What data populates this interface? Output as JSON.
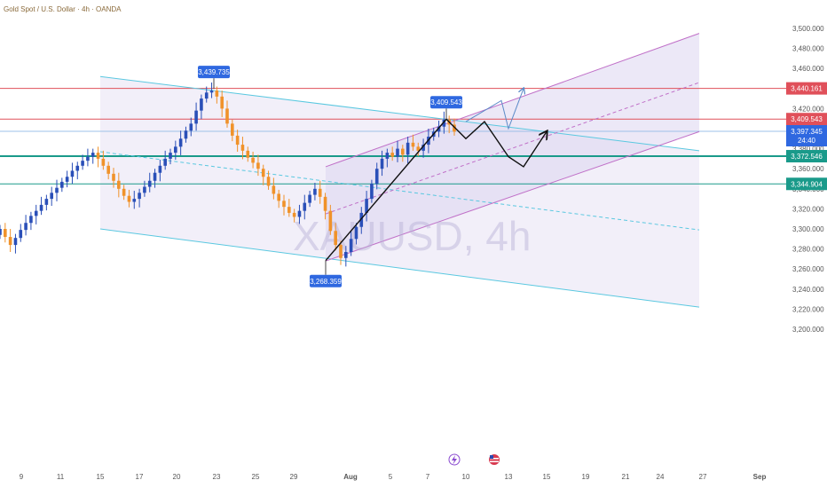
{
  "header": {
    "title": "Gold Spot / U.S. Dollar · 4h · OANDA"
  },
  "watermark": "XAUUSD, 4h",
  "colors": {
    "up": "#2a4fb8",
    "down": "#f0922a",
    "resistance": "#e0505a",
    "support": "#1a9a8a",
    "channel_down": "#5ac8e0",
    "channel_up": "#c070c8",
    "projection": "#111111",
    "alt_projection": "#5b8ac8",
    "price_tag": "#2f68e0"
  },
  "chart_data": {
    "type": "candlestick",
    "symbol": "XAUUSD",
    "timeframe": "4h",
    "y_ticks": [
      "3,500.000",
      "3,480.000",
      "3,460.000",
      "3,440.000",
      "3,420.000",
      "3,400.000",
      "3,380.000",
      "3,360.000",
      "3,340.000",
      "3,320.000",
      "3,300.000",
      "3,280.000",
      "3,260.000",
      "3,240.000",
      "3,220.000",
      "3,200.000"
    ],
    "ylim": [
      3200,
      3500
    ],
    "x_ticks": [
      "9",
      "11",
      "15",
      "17",
      "20",
      "23",
      "25",
      "29",
      "Aug",
      "5",
      "7",
      "10",
      "13",
      "15",
      "19",
      "21",
      "24",
      "27",
      "Sep"
    ],
    "levels": [
      {
        "value": 3440.161,
        "label": "3,440.161",
        "role": "resistance"
      },
      {
        "value": 3409.543,
        "label": "3,409.543",
        "role": "resistance"
      },
      {
        "value": 3397.345,
        "label": "3,397.345",
        "sub": "24:40",
        "role": "current"
      },
      {
        "value": 3372.546,
        "label": "3,372.546",
        "role": "support"
      },
      {
        "value": 3344.904,
        "label": "3,344.904",
        "role": "support"
      }
    ],
    "annotations": [
      {
        "text": "3,439.735",
        "x": "Jul 23",
        "y": 3439.735,
        "kind": "high"
      },
      {
        "text": "3,409.543",
        "x": "Aug 8",
        "y": 3409.543,
        "kind": "high"
      },
      {
        "text": "3,268.359",
        "x": "Jul 30",
        "y": 3268.359,
        "kind": "low"
      }
    ],
    "closes": [
      3300,
      3292,
      3284,
      3291,
      3299,
      3306,
      3313,
      3318,
      3324,
      3330,
      3336,
      3341,
      3347,
      3352,
      3358,
      3363,
      3368,
      3372,
      3376,
      3370,
      3363,
      3355,
      3348,
      3340,
      3333,
      3327,
      3330,
      3336,
      3342,
      3348,
      3356,
      3363,
      3370,
      3376,
      3382,
      3390,
      3398,
      3405,
      3418,
      3430,
      3436,
      3438,
      3432,
      3420,
      3405,
      3393,
      3384,
      3378,
      3371,
      3366,
      3360,
      3352,
      3343,
      3335,
      3328,
      3322,
      3316,
      3312,
      3318,
      3326,
      3334,
      3340,
      3332,
      3318,
      3298,
      3284,
      3271,
      3277,
      3290,
      3302,
      3316,
      3330,
      3345,
      3360,
      3370,
      3376,
      3372,
      3380,
      3374,
      3386,
      3382,
      3378,
      3384,
      3392,
      3397,
      3402,
      3409,
      3404,
      3397
    ],
    "projection_path": [
      {
        "x": "Aug 8",
        "y": 3409.5
      },
      {
        "x": "Aug 10",
        "y": 3390
      },
      {
        "x": "Aug 11",
        "y": 3407
      },
      {
        "x": "Aug 13",
        "y": 3372
      },
      {
        "x": "Aug 14",
        "y": 3362
      },
      {
        "x": "Aug 15",
        "y": 3397
      }
    ],
    "alt_projection_path": [
      {
        "x": "Aug 10",
        "y": 3407
      },
      {
        "x": "Aug 12",
        "y": 3428
      },
      {
        "x": "Aug 13",
        "y": 3400
      },
      {
        "x": "Aug 14",
        "y": 3440
      }
    ],
    "descending_channel": {
      "upper": [
        {
          "x": "Jul 15",
          "y": 3452
        },
        {
          "x": "Aug 28",
          "y": 3378
        }
      ],
      "lower": [
        {
          "x": "Jul 15",
          "y": 3300
        },
        {
          "x": "Aug 28",
          "y": 3222
        }
      ],
      "mid": [
        {
          "x": "Jul 15",
          "y": 3377
        },
        {
          "x": "Aug 28",
          "y": 3299
        }
      ]
    },
    "ascending_channel": {
      "lower": [
        {
          "x": "Jul 30",
          "y": 3268
        },
        {
          "x": "Aug 28",
          "y": 3397
        }
      ],
      "upper": [
        {
          "x": "Jul 30",
          "y": 3362
        },
        {
          "x": "Aug 28",
          "y": 3495
        }
      ],
      "mid": [
        {
          "x": "Jul 30",
          "y": 3315
        },
        {
          "x": "Aug 28",
          "y": 3446
        }
      ]
    },
    "grid": false,
    "legend": "none"
  }
}
